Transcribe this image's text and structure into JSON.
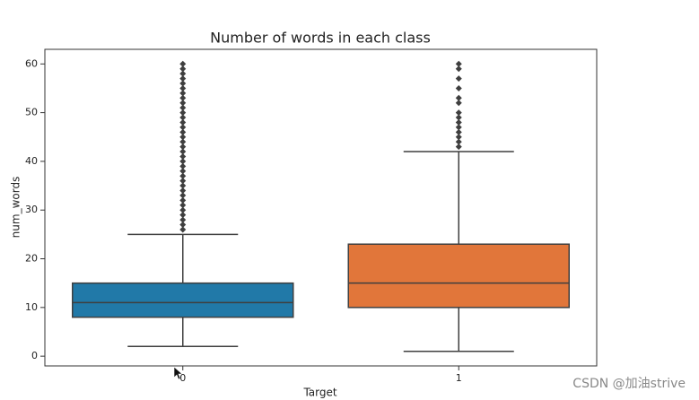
{
  "chart_data": {
    "type": "box",
    "title": "Number of words in each class",
    "xlabel": "Target",
    "ylabel": "num_words",
    "categories": [
      "0",
      "1"
    ],
    "colors": [
      "#2179a8",
      "#e1763a"
    ],
    "boxes": [
      {
        "low": 2,
        "q1": 8,
        "median": 11,
        "q3": 15,
        "high": 25,
        "fliers": [
          26,
          27,
          28,
          29,
          30,
          31,
          32,
          33,
          34,
          35,
          36,
          37,
          38,
          39,
          40,
          41,
          42,
          43,
          44,
          45,
          46,
          47,
          48,
          49,
          50,
          51,
          52,
          53,
          54,
          55,
          56,
          57,
          58,
          59,
          60
        ]
      },
      {
        "low": 1,
        "q1": 10,
        "median": 15,
        "q3": 23,
        "high": 42,
        "fliers": [
          43,
          44,
          45,
          46,
          47,
          48,
          49,
          50,
          52,
          53,
          55,
          57,
          59,
          60
        ]
      }
    ],
    "ylim": [
      -2,
      63
    ],
    "yticks": [
      0,
      10,
      20,
      30,
      40,
      50,
      60
    ]
  },
  "watermark": "CSDN @加油strive"
}
